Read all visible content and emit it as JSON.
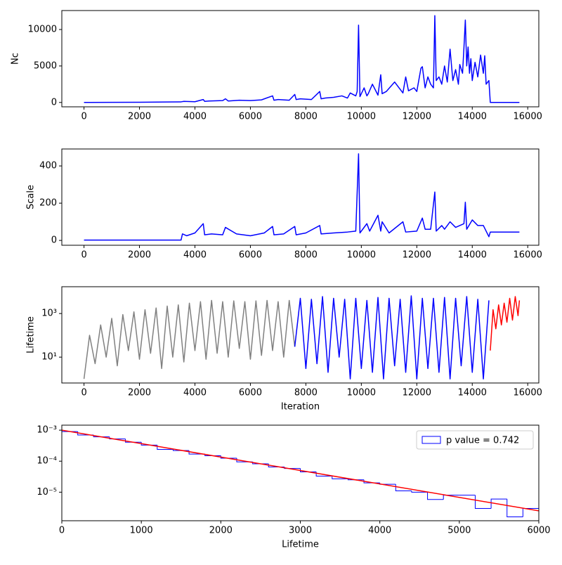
{
  "chart_data": [
    {
      "type": "line",
      "ylabel": "Nc",
      "xlim": [
        -800,
        16400
      ],
      "ylim": [
        -600,
        12600
      ],
      "xticks": [
        0,
        2000,
        4000,
        6000,
        8000,
        10000,
        12000,
        14000,
        16000
      ],
      "yticks": [
        0,
        5000,
        10000
      ],
      "series": [
        {
          "color": "blue",
          "x": [
            0,
            1000,
            2000,
            3000,
            3500,
            3600,
            4000,
            4300,
            4350,
            4500,
            5000,
            5100,
            5200,
            5600,
            6000,
            6400,
            6800,
            6850,
            7000,
            7400,
            7600,
            7650,
            7800,
            8200,
            8500,
            8550,
            8700,
            9000,
            9300,
            9500,
            9600,
            9800,
            9850,
            9900,
            9950,
            10100,
            10200,
            10250,
            10400,
            10600,
            10700,
            10750,
            10900,
            11200,
            11500,
            11600,
            11700,
            11900,
            12000,
            12150,
            12200,
            12300,
            12400,
            12500,
            12600,
            12650,
            12700,
            12800,
            12900,
            13000,
            13100,
            13200,
            13300,
            13400,
            13500,
            13550,
            13650,
            13700,
            13750,
            13800,
            13850,
            13900,
            13950,
            14000,
            14100,
            14200,
            14300,
            14400,
            14450,
            14500,
            14600,
            14650,
            14700,
            15700
          ],
          "values": [
            0,
            10,
            30,
            60,
            80,
            150,
            100,
            400,
            150,
            200,
            250,
            500,
            200,
            300,
            250,
            350,
            900,
            300,
            400,
            300,
            1100,
            400,
            500,
            400,
            1500,
            500,
            600,
            700,
            900,
            600,
            1300,
            900,
            1500,
            10600,
            800,
            2000,
            900,
            1200,
            2500,
            1000,
            3800,
            1200,
            1500,
            2800,
            1300,
            3500,
            1600,
            2000,
            1500,
            4700,
            4900,
            2000,
            3500,
            2500,
            2000,
            11900,
            3000,
            3500,
            2500,
            5000,
            2800,
            7300,
            3000,
            4500,
            2500,
            5200,
            4000,
            7500,
            11300,
            5000,
            7600,
            4000,
            6000,
            3000,
            5500,
            3500,
            6500,
            4000,
            6400,
            2500,
            3000,
            0,
            0,
            0
          ]
        }
      ]
    },
    {
      "type": "line",
      "ylabel": "Scale",
      "xlim": [
        -800,
        16400
      ],
      "ylim": [
        -26,
        491
      ],
      "xticks": [
        0,
        2000,
        4000,
        6000,
        8000,
        10000,
        12000,
        14000,
        16000
      ],
      "yticks": [
        0,
        200,
        400
      ],
      "series": [
        {
          "color": "blue",
          "x": [
            0,
            3500,
            3550,
            3700,
            4000,
            4300,
            4350,
            4600,
            5000,
            5100,
            5500,
            6000,
            6500,
            6800,
            6850,
            7200,
            7600,
            7650,
            8000,
            8500,
            8550,
            9000,
            9500,
            9800,
            9900,
            9950,
            10200,
            10300,
            10600,
            10700,
            10750,
            11000,
            11500,
            11600,
            12000,
            12200,
            12300,
            12500,
            12650,
            12700,
            12900,
            13000,
            13200,
            13400,
            13700,
            13750,
            13800,
            14000,
            14200,
            14400,
            14600,
            14650,
            15700
          ],
          "values": [
            2,
            2,
            35,
            25,
            40,
            90,
            30,
            35,
            30,
            70,
            35,
            25,
            40,
            75,
            30,
            35,
            75,
            30,
            40,
            80,
            35,
            40,
            45,
            50,
            465,
            40,
            90,
            50,
            135,
            50,
            100,
            40,
            100,
            45,
            50,
            120,
            60,
            60,
            260,
            50,
            80,
            60,
            100,
            70,
            90,
            205,
            60,
            110,
            80,
            80,
            20,
            45,
            45
          ]
        }
      ]
    },
    {
      "type": "line",
      "ylabel": "Lifetime",
      "xlabel": "Iteration",
      "log_y": true,
      "xlim": [
        -800,
        16400
      ],
      "ylim": [
        0.65,
        17000
      ],
      "xticks": [
        0,
        2000,
        4000,
        6000,
        8000,
        10000,
        12000,
        14000,
        16000
      ],
      "yticks": [
        {
          "value": 10,
          "label": "10¹"
        },
        {
          "value": 1000,
          "label": "10³"
        }
      ],
      "series": [
        {
          "color": "gray",
          "x": [
            0,
            200,
            400,
            600,
            800,
            1000,
            1200,
            1400,
            1600,
            1800,
            2000,
            2200,
            2400,
            2600,
            2800,
            3000,
            3200,
            3400,
            3600,
            3800,
            4000,
            4200,
            4400,
            4600,
            4800,
            5000,
            5200,
            5400,
            5600,
            5800,
            6000,
            6200,
            6400,
            6600,
            6800,
            7000,
            7200,
            7400,
            7600
          ],
          "values": [
            1,
            100,
            5,
            300,
            10,
            600,
            4,
            900,
            20,
            1200,
            8,
            1500,
            15,
            1800,
            3,
            2200,
            10,
            2500,
            6,
            3000,
            20,
            3500,
            8,
            4000,
            15,
            3500,
            10,
            3800,
            25,
            3500,
            8,
            3800,
            12,
            4000,
            20,
            3500,
            10,
            4000,
            30
          ]
        },
        {
          "color": "blue",
          "x": [
            7600,
            7800,
            8000,
            8200,
            8400,
            8600,
            8800,
            9000,
            9200,
            9400,
            9600,
            9800,
            10000,
            10200,
            10400,
            10600,
            10800,
            11000,
            11200,
            11400,
            11600,
            11800,
            12000,
            12200,
            12400,
            12600,
            12800,
            13000,
            13200,
            13400,
            13600,
            13800,
            14000,
            14200,
            14400,
            14600
          ],
          "values": [
            30,
            5000,
            3,
            4500,
            5,
            6000,
            2,
            5000,
            10,
            4500,
            1,
            5000,
            3,
            4000,
            2,
            5500,
            1,
            5000,
            4,
            4500,
            2,
            6500,
            1,
            5000,
            3,
            5000,
            2,
            5500,
            1,
            5000,
            4,
            6000,
            2,
            4500,
            1,
            4000
          ]
        },
        {
          "color": "red",
          "x": [
            14650,
            14750,
            14850,
            14950,
            15050,
            15150,
            15250,
            15350,
            15450,
            15550,
            15650,
            15700
          ],
          "values": [
            20,
            1500,
            200,
            2500,
            300,
            3000,
            400,
            5000,
            500,
            6000,
            800,
            4000
          ]
        }
      ]
    },
    {
      "type": "histogram",
      "xlabel": "Lifetime",
      "log_y": true,
      "xlim": [
        0,
        6000
      ],
      "ylim": [
        1.2e-06,
        0.00145
      ],
      "xticks": [
        0,
        1000,
        2000,
        3000,
        4000,
        5000,
        6000
      ],
      "yticks": [
        {
          "value": 0.001,
          "label": "10⁻³"
        },
        {
          "value": 0.0001,
          "label": "10⁻⁴"
        },
        {
          "value": 1e-05,
          "label": "10⁻⁵"
        }
      ],
      "name": "p value = 0.742",
      "color": "blue",
      "legend": "upper right",
      "bins": [
        0,
        200,
        400,
        600,
        800,
        1000,
        1200,
        1400,
        1600,
        1800,
        2000,
        2200,
        2400,
        2600,
        2800,
        3000,
        3200,
        3400,
        3600,
        3800,
        4000,
        4200,
        4400,
        4600,
        4800,
        5000,
        5200,
        5400,
        5600,
        5800,
        6000
      ],
      "values": [
        0.0009,
        0.0007,
        0.00061,
        0.00052,
        0.00041,
        0.00033,
        0.00024,
        0.00022,
        0.00017,
        0.00015,
        0.000125,
        9.5e-05,
        8.2e-05,
        6.5e-05,
        5.8e-05,
        4.5e-05,
        3.3e-05,
        2.7e-05,
        2.5e-05,
        2e-05,
        1.8e-05,
        1.1e-05,
        1e-05,
        5.8e-06,
        8e-06,
        8e-06,
        3e-06,
        6e-06,
        1.6e-06,
        3e-06
      ],
      "fit": {
        "color": "red",
        "x": [
          0,
          6000
        ],
        "values": [
          0.001,
          2.5e-06
        ]
      }
    }
  ]
}
